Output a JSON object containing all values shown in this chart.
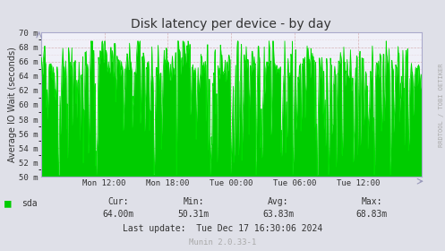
{
  "title": "Disk latency per device - by day",
  "ylabel": "Average IO Wait (seconds)",
  "bg_color": "#dfe0e8",
  "plot_bg_color": "#f0f0f8",
  "line_color": "#00dd00",
  "fill_color": "#00cc00",
  "ylim": [
    50,
    70
  ],
  "yticks": [
    50,
    52,
    54,
    56,
    58,
    60,
    62,
    64,
    66,
    68,
    70
  ],
  "ytick_labels": [
    "50 m",
    "52 m",
    "54 m",
    "56 m",
    "58 m",
    "60 m",
    "62 m",
    "64 m",
    "66 m",
    "68 m",
    "70 m"
  ],
  "xtick_labels": [
    "Mon 12:00",
    "Mon 18:00",
    "Tue 00:00",
    "Tue 06:00",
    "Tue 12:00"
  ],
  "xtick_positions": [
    0.1667,
    0.3333,
    0.5,
    0.6667,
    0.8333
  ],
  "legend_label": "sda",
  "legend_color": "#00cc00",
  "cur_label": "Cur:",
  "cur_val": "64.00m",
  "min_label": "Min:",
  "min_val": "50.31m",
  "avg_label": "Avg:",
  "avg_val": "63.83m",
  "max_label": "Max:",
  "max_val": "68.83m",
  "last_update": "Last update:  Tue Dec 17 16:30:06 2024",
  "munin_ver": "Munin 2.0.33-1",
  "rrdtool_label": "RRDTOOL / TOBI OETIKER",
  "title_color": "#333333",
  "text_color": "#333333",
  "grid_color": "#cc9999",
  "spine_color": "#aaaacc"
}
